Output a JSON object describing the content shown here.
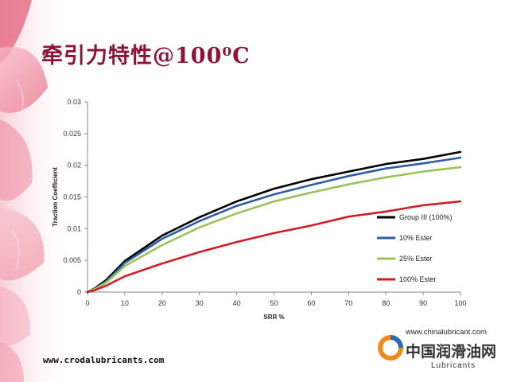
{
  "slide": {
    "title": "牵引力特性@100⁰C",
    "footer_url": "www.crodalubricants.com"
  },
  "logo": {
    "url": "www.chinalubricant.com",
    "name_cn": "中国润滑油网",
    "name_en": "Lubricants"
  },
  "colors": {
    "title": "#8a1538",
    "background_flower": "#e8607a"
  },
  "chart_data": {
    "type": "line",
    "title": "",
    "xlabel": "SRR %",
    "ylabel": "Traction Coefficient",
    "xlim": [
      0,
      100
    ],
    "ylim": [
      0,
      0.03
    ],
    "x_ticks": [
      "0",
      "10",
      "20",
      "30",
      "40",
      "50",
      "60",
      "70",
      "80",
      "90",
      "100"
    ],
    "y_ticks": [
      "0",
      "0.005",
      "0.01",
      "0.015",
      "0.02",
      "0.025",
      "0.03"
    ],
    "grid": false,
    "legend_position": "lower-right",
    "series": [
      {
        "name": "Group III (100%)",
        "color": "#000000",
        "x": [
          0,
          2,
          5,
          10,
          20,
          30,
          40,
          50,
          60,
          70,
          80,
          90,
          100
        ],
        "y": [
          0,
          0.0006,
          0.0019,
          0.0049,
          0.0089,
          0.0118,
          0.0143,
          0.0163,
          0.0178,
          0.019,
          0.0202,
          0.021,
          0.0221
        ]
      },
      {
        "name": "10% Ester",
        "color": "#2e5f9e",
        "x": [
          0,
          2,
          5,
          10,
          20,
          30,
          40,
          50,
          60,
          70,
          80,
          90,
          100
        ],
        "y": [
          0,
          0.0005,
          0.0017,
          0.0046,
          0.0084,
          0.0112,
          0.0136,
          0.0154,
          0.0169,
          0.0183,
          0.0195,
          0.0203,
          0.0212
        ]
      },
      {
        "name": "25% Ester",
        "color": "#9bc15b",
        "x": [
          0,
          2,
          5,
          10,
          20,
          30,
          40,
          50,
          60,
          70,
          80,
          90,
          100
        ],
        "y": [
          0,
          0.0005,
          0.0015,
          0.0041,
          0.0074,
          0.0102,
          0.0124,
          0.0143,
          0.0157,
          0.017,
          0.0181,
          0.019,
          0.0197
        ]
      },
      {
        "name": "100% Ester",
        "color": "#cc2027",
        "x": [
          0,
          2,
          5,
          10,
          20,
          30,
          40,
          50,
          60,
          70,
          80,
          90,
          100
        ],
        "y": [
          0,
          0.0003,
          0.001,
          0.0025,
          0.0045,
          0.0063,
          0.0079,
          0.0093,
          0.0105,
          0.0119,
          0.0127,
          0.0137,
          0.0143
        ]
      }
    ]
  }
}
